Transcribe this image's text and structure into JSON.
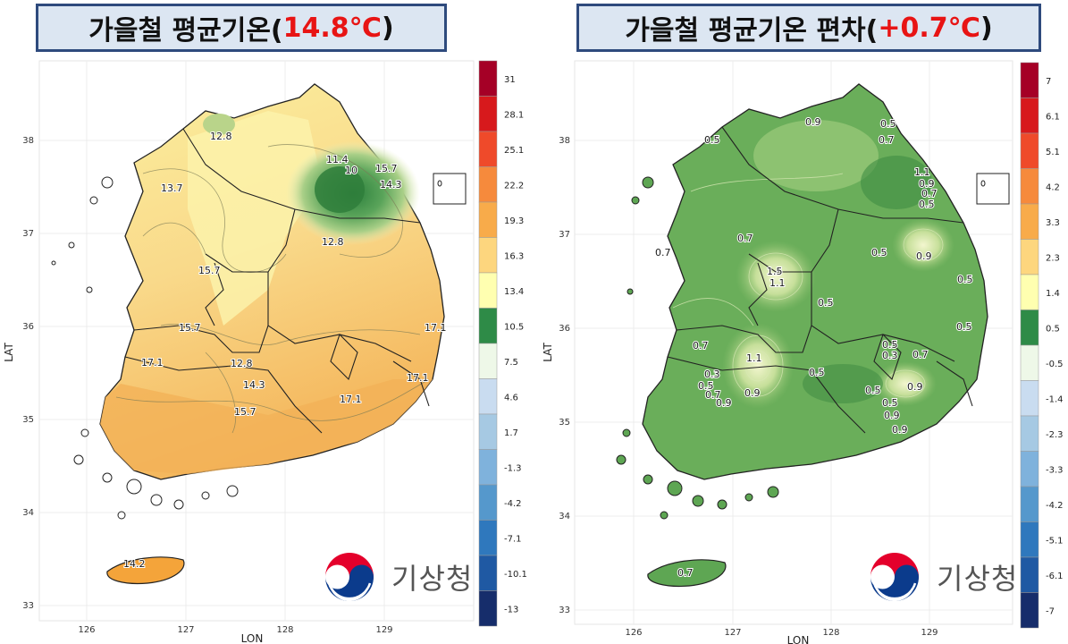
{
  "left_panel": {
    "title_prefix": "가을철 평균기온(",
    "title_value": "14.8℃",
    "title_suffix": ")",
    "x_axis_label": "LON",
    "y_axis_label": "LAT",
    "x_ticks": [
      "126",
      "127",
      "128",
      "129"
    ],
    "y_ticks": [
      "38",
      "37",
      "36",
      "35",
      "34",
      "33"
    ],
    "contour_labels": [
      "12.8",
      "11.4",
      "10",
      "15.7",
      "14.3",
      "13.7",
      "12.8",
      "15.7",
      "15.7",
      "17.1",
      "12.8",
      "14.3",
      "17.1",
      "15.7",
      "17.1",
      "17.1",
      "14.2"
    ],
    "legend_labels": [
      "31",
      "28.1",
      "25.1",
      "22.2",
      "19.3",
      "16.3",
      "13.4",
      "10.5",
      "7.5",
      "4.6",
      "1.7",
      "-1.3",
      "-4.2",
      "-7.1",
      "-10.1",
      "-13"
    ],
    "legend_colors": [
      "#a50026",
      "#d7191c",
      "#ef4a2a",
      "#f68a3c",
      "#f8ab4a",
      "#fdd67e",
      "#ffffb0",
      "#2e8b47",
      "#eef8e8",
      "#c9dcf0",
      "#a6c9e3",
      "#7fb2dc",
      "#5598cc",
      "#2f78bd",
      "#1f59a3",
      "#162d6b"
    ]
  },
  "right_panel": {
    "title_prefix": "가을철 평균기온 편차(",
    "title_value": "+0.7℃",
    "title_suffix": ")",
    "x_axis_label": "LON",
    "y_axis_label": "LAT",
    "x_ticks": [
      "126",
      "127",
      "128",
      "129"
    ],
    "y_ticks": [
      "38",
      "37",
      "36",
      "35",
      "34",
      "33"
    ],
    "contour_labels": [
      "0.9",
      "0.5",
      "0.7",
      "0.5",
      "1.1",
      "0.9",
      "0.7",
      "0.5",
      "0.7",
      "0.7",
      "1.5",
      "1.1",
      "0.5",
      "0.9",
      "0.5",
      "0.5",
      "0.5",
      "0.7",
      "1.1",
      "0.3",
      "0.5",
      "0.7",
      "0.9",
      "0.9",
      "0.5",
      "0.5",
      "0.9",
      "0.5",
      "0.3",
      "0.5",
      "0.7",
      "0.9",
      "0.7",
      "0.9"
    ],
    "legend_labels": [
      "7",
      "6.1",
      "5.1",
      "4.2",
      "3.3",
      "2.3",
      "1.4",
      "0.5",
      "-0.5",
      "-1.4",
      "-2.3",
      "-3.3",
      "-4.2",
      "-5.1",
      "-6.1",
      "-7"
    ],
    "legend_colors": [
      "#a50026",
      "#d7191c",
      "#ef4a2a",
      "#f68a3c",
      "#f8ab4a",
      "#fdd67e",
      "#ffffb0",
      "#2e8b47",
      "#eef8e8",
      "#c9dcf0",
      "#a6c9e3",
      "#7fb2dc",
      "#5598cc",
      "#2f78bd",
      "#1f59a3",
      "#162d6b"
    ]
  },
  "logo": {
    "text": "기상청",
    "colors": {
      "red": "#e4002b",
      "blue": "#0b3b8c",
      "gray": "#555555"
    }
  }
}
